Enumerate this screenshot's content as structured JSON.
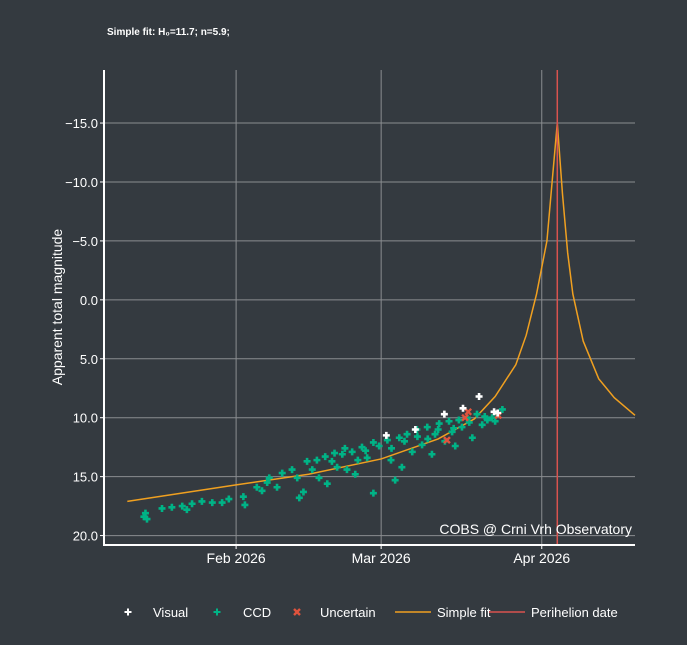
{
  "chart_data": {
    "type": "scatter",
    "title": "Simple fit: H₀=11.7; n=5.9;",
    "xlabel": "",
    "ylabel": "Apparent total magnitude",
    "x_unit": "day of 2026 (Jan 1 = 0)",
    "xlim": [
      5.5,
      108
    ],
    "ylim": [
      20.8,
      -19.5
    ],
    "y_reversed": true,
    "grid": true,
    "y_ticks": [
      -15,
      -10,
      -5,
      0,
      5,
      10,
      15,
      20
    ],
    "y_tick_labels": [
      "−15.0",
      "−10.0",
      "−5.0",
      "0.0",
      "5.0",
      "10.0",
      "15.0",
      "20.0"
    ],
    "x_ticks": [
      31,
      59,
      90
    ],
    "x_tick_labels": [
      "Feb 2026",
      "Mar 2026",
      "Apr 2026"
    ],
    "annotation": "COBS @ Crni Vrh Observatory",
    "legend_placement": "bottom",
    "series": [
      {
        "name": "Visual",
        "type": "scatter",
        "color": "#ffffff",
        "points": [
          [
            60,
            11.5
          ],
          [
            65.6,
            11.0
          ],
          [
            71.2,
            9.7
          ],
          [
            74.8,
            9.2
          ],
          [
            77.9,
            8.2
          ],
          [
            80.8,
            9.5
          ],
          [
            81.5,
            9.6
          ]
        ]
      },
      {
        "name": "CCD",
        "type": "scatter",
        "color": "#00b386",
        "points": [
          [
            13.2,
            18.4
          ],
          [
            13.5,
            18.1
          ],
          [
            13.8,
            18.6
          ],
          [
            16.7,
            17.7
          ],
          [
            18.6,
            17.6
          ],
          [
            20.6,
            17.5
          ],
          [
            21.5,
            17.8
          ],
          [
            22.5,
            17.3
          ],
          [
            24.4,
            17.1
          ],
          [
            26.4,
            17.2
          ],
          [
            28.3,
            17.2
          ],
          [
            29.6,
            16.9
          ],
          [
            32.4,
            16.7
          ],
          [
            32.7,
            17.4
          ],
          [
            35,
            15.9
          ],
          [
            36,
            16.2
          ],
          [
            37,
            15.5
          ],
          [
            37.4,
            15.1
          ],
          [
            38.9,
            15.9
          ],
          [
            39.9,
            14.7
          ],
          [
            41.8,
            14.4
          ],
          [
            42.8,
            15.1
          ],
          [
            43.2,
            16.8
          ],
          [
            44,
            16.3
          ],
          [
            44.7,
            13.7
          ],
          [
            45.7,
            14.4
          ],
          [
            46.6,
            13.6
          ],
          [
            47,
            15.1
          ],
          [
            48.2,
            13.3
          ],
          [
            48.6,
            15.6
          ],
          [
            49.5,
            13.7
          ],
          [
            50.5,
            14.2
          ],
          [
            51.5,
            13.1
          ],
          [
            52.4,
            14.4
          ],
          [
            53.4,
            12.9
          ],
          [
            54,
            14.8
          ],
          [
            55.3,
            12.5
          ],
          [
            56.3,
            13.4
          ],
          [
            57.5,
            12.1
          ],
          [
            58.6,
            12.4
          ],
          [
            57.5,
            16.4
          ],
          [
            60.2,
            11.9
          ],
          [
            60.9,
            13.6
          ],
          [
            61.7,
            15.3
          ],
          [
            62.5,
            11.7
          ],
          [
            63,
            14.2
          ],
          [
            64,
            11.4
          ],
          [
            65,
            12.9
          ],
          [
            65.9,
            11.0
          ],
          [
            66.9,
            12.3
          ],
          [
            67.9,
            10.8
          ],
          [
            68.8,
            13.1
          ],
          [
            69.4,
            11.4
          ],
          [
            70.2,
            10.5
          ],
          [
            71.3,
            12.0
          ],
          [
            72.1,
            10.3
          ],
          [
            72.7,
            11.2
          ],
          [
            73.3,
            12.4
          ],
          [
            74,
            10.2
          ],
          [
            74.6,
            10.8
          ],
          [
            75.6,
            10.0
          ],
          [
            76.6,
            11.7
          ],
          [
            77.5,
            9.7
          ],
          [
            78.5,
            10.6
          ],
          [
            79.5,
            10.2
          ],
          [
            80.4,
            10.0
          ],
          [
            81.4,
            9.7
          ],
          [
            82.4,
            9.3
          ],
          [
            81,
            10.3
          ],
          [
            50,
            13.0
          ],
          [
            52,
            12.6
          ],
          [
            54.5,
            13.6
          ],
          [
            56,
            12.8
          ],
          [
            61,
            12.6
          ],
          [
            63.5,
            12.0
          ],
          [
            66,
            11.6
          ],
          [
            68,
            11.8
          ],
          [
            70,
            11.0
          ],
          [
            73,
            10.9
          ],
          [
            76,
            10.4
          ],
          [
            79,
            9.9
          ]
        ]
      },
      {
        "name": "Uncertain",
        "type": "scatter",
        "color": "#e0533d",
        "points": [
          [
            75.8,
            9.5
          ],
          [
            75.2,
            10.0
          ],
          [
            71.7,
            11.9
          ],
          [
            81.6,
            9.8
          ]
        ]
      },
      {
        "name": "Simple fit",
        "type": "line",
        "color": "#f0a020",
        "points": [
          [
            10,
            17.1
          ],
          [
            31,
            15.7
          ],
          [
            45,
            14.8
          ],
          [
            59,
            13.5
          ],
          [
            70,
            11.8
          ],
          [
            77,
            10.1
          ],
          [
            81,
            8.2
          ],
          [
            85,
            5.5
          ],
          [
            87,
            3
          ],
          [
            89,
            -0.5
          ],
          [
            91,
            -5
          ],
          [
            92,
            -10
          ],
          [
            93,
            -15
          ],
          [
            94,
            -9
          ],
          [
            95,
            -4
          ],
          [
            96,
            -0.5
          ],
          [
            98,
            3.5
          ],
          [
            101,
            6.7
          ],
          [
            104,
            8.3
          ],
          [
            108,
            9.8
          ]
        ]
      },
      {
        "name": "Perihelion date",
        "type": "vline",
        "color": "#d9534f",
        "x": 93
      }
    ]
  }
}
